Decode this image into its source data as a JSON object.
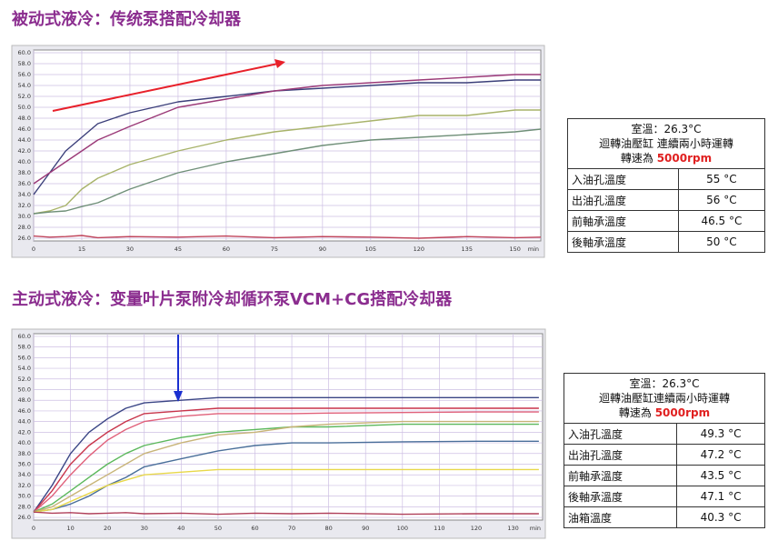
{
  "chart_data": [
    {
      "type": "line",
      "title": "被动式液冷：传统泵搭配冷却器",
      "xlabel": "min",
      "grid": true,
      "x": [
        0,
        5,
        10,
        15,
        20,
        30,
        45,
        60,
        75,
        90,
        105,
        120,
        135,
        150,
        158
      ],
      "xlim": [
        0,
        158
      ],
      "xticks": [
        0,
        15,
        30,
        45,
        60,
        75,
        90,
        105,
        120,
        135,
        150
      ],
      "ylim": [
        25.5,
        60.5
      ],
      "yticks": [
        {
          "value": 26,
          "label": "26.0"
        },
        {
          "value": 28,
          "label": "28.0"
        },
        {
          "value": 30,
          "label": "30.0"
        },
        {
          "value": 32,
          "label": "32.0"
        },
        {
          "value": 34,
          "label": "34.0"
        },
        {
          "value": 36,
          "label": "36.0"
        },
        {
          "value": 38,
          "label": "38.0"
        },
        {
          "value": 40,
          "label": "40.0"
        },
        {
          "value": 42,
          "label": "42.0"
        },
        {
          "value": 44,
          "label": "44.0"
        },
        {
          "value": 46,
          "label": "46.0"
        },
        {
          "value": 48,
          "label": "48.0"
        },
        {
          "value": 50,
          "label": "50.0"
        },
        {
          "value": 52,
          "label": "52.0"
        },
        {
          "value": 54,
          "label": "54.0"
        },
        {
          "value": 56,
          "label": "56.0"
        },
        {
          "value": 58,
          "label": "58.0"
        },
        {
          "value": 60,
          "label": "60.0"
        }
      ],
      "series": [
        {
          "color": "#3b3f7a",
          "values": [
            34,
            38,
            42,
            44.5,
            47,
            49,
            51,
            52,
            53,
            53.5,
            54,
            54.5,
            54.5,
            55,
            55
          ]
        },
        {
          "color": "#9b3a78",
          "values": [
            36,
            38,
            40,
            42,
            44,
            46.5,
            50,
            51.5,
            53,
            54,
            54.5,
            55,
            55.5,
            56,
            56
          ]
        },
        {
          "color": "#a8b36a",
          "values": [
            30.5,
            31,
            32,
            35,
            37,
            39.5,
            42,
            44,
            45.5,
            46.5,
            47.5,
            48.5,
            48.5,
            49.5,
            49.5
          ]
        },
        {
          "color": "#6f8f78",
          "values": [
            30.5,
            30.8,
            31,
            31.8,
            32.5,
            35,
            38,
            40,
            41.5,
            43,
            44,
            44.5,
            45,
            45.5,
            46
          ]
        },
        {
          "color": "#c0445a",
          "values": [
            26.4,
            26.2,
            26.3,
            26.5,
            26.1,
            26.3,
            26.2,
            26.4,
            26.1,
            26.3,
            26.2,
            26.0,
            26.3,
            26.1,
            26.2
          ]
        }
      ]
    },
    {
      "type": "line",
      "title": "主动式液冷：变量叶片泵附冷却循环泵VCM+CG搭配冷却器",
      "xlabel": "min",
      "grid": true,
      "x": [
        0,
        5,
        10,
        15,
        20,
        25,
        30,
        40,
        50,
        60,
        70,
        80,
        100,
        120,
        137
      ],
      "xlim": [
        0,
        138
      ],
      "xticks": [
        0,
        10,
        20,
        30,
        40,
        50,
        60,
        70,
        80,
        90,
        100,
        110,
        120,
        130
      ],
      "ylim": [
        25.5,
        60.5
      ],
      "yticks": [
        {
          "value": 26,
          "label": "26.0"
        },
        {
          "value": 28,
          "label": "28.0"
        },
        {
          "value": 30,
          "label": "30.0"
        },
        {
          "value": 32,
          "label": "32.0"
        },
        {
          "value": 34,
          "label": "34.0"
        },
        {
          "value": 36,
          "label": "36.0"
        },
        {
          "value": 38,
          "label": "38.0"
        },
        {
          "value": 40,
          "label": "40.0"
        },
        {
          "value": 42,
          "label": "42.0"
        },
        {
          "value": 44,
          "label": "44.0"
        },
        {
          "value": 46,
          "label": "46.0"
        },
        {
          "value": 48,
          "label": "48.0"
        },
        {
          "value": 50,
          "label": "50.0"
        },
        {
          "value": 52,
          "label": "52.0"
        },
        {
          "value": 54,
          "label": "54.0"
        },
        {
          "value": 56,
          "label": "56.0"
        },
        {
          "value": 58,
          "label": "58.0"
        },
        {
          "value": 60,
          "label": "60.0"
        }
      ],
      "series": [
        {
          "color": "#3a4585",
          "values": [
            27,
            32,
            38,
            42,
            44.5,
            46.5,
            47.5,
            48,
            48.5,
            48.5,
            48.5,
            48.5,
            48.5,
            48.5,
            48.5
          ]
        },
        {
          "color": "#c8344a",
          "values": [
            27,
            31,
            36,
            39.5,
            42,
            44,
            45.5,
            46,
            46.5,
            46.5,
            46.5,
            46.5,
            46.5,
            46.5,
            46.5
          ]
        },
        {
          "color": "#e0607a",
          "values": [
            27,
            30,
            34,
            37.5,
            40.5,
            42.5,
            44,
            45,
            45.5,
            45.5,
            45.5,
            45.6,
            45.7,
            45.8,
            45.8
          ]
        },
        {
          "color": "#5cb85c",
          "values": [
            27,
            28.5,
            31,
            33.5,
            36,
            38,
            39.5,
            41,
            42,
            42.5,
            43,
            43,
            43.5,
            43.5,
            43.5
          ]
        },
        {
          "color": "#c8b478",
          "values": [
            27,
            28,
            30,
            32,
            34,
            36,
            38,
            40,
            41.5,
            42,
            43,
            43.5,
            44,
            44,
            44
          ]
        },
        {
          "color": "#4a6f9a",
          "values": [
            27,
            27.5,
            28.5,
            30,
            32,
            33.5,
            35.5,
            37,
            38.5,
            39.5,
            40,
            40,
            40.2,
            40.3,
            40.3
          ]
        },
        {
          "color": "#e8d84a",
          "values": [
            27,
            27.5,
            29,
            30.5,
            32,
            33,
            34,
            34.5,
            35,
            35,
            35,
            35,
            35,
            35,
            35
          ]
        },
        {
          "color": "#b0405a",
          "values": [
            27,
            26.8,
            26.9,
            26.7,
            26.8,
            26.9,
            26.7,
            26.8,
            26.6,
            26.8,
            26.7,
            26.8,
            26.6,
            26.7,
            26.7
          ]
        }
      ]
    }
  ],
  "tables": [
    {
      "header": [
        "室溫：26.3°C",
        "迴轉油壓缸 連續兩小時運轉"
      ],
      "speed_label": "轉速為",
      "speed_value": "5000rpm",
      "rows": [
        [
          "入油孔溫度",
          "55 °C"
        ],
        [
          "出油孔溫度",
          "56 °C"
        ],
        [
          "前軸承溫度",
          "46.5 °C"
        ],
        [
          "後軸承溫度",
          "50 °C"
        ]
      ]
    },
    {
      "header": [
        "室溫：26.3°C",
        "迴轉油壓缸連續兩小時運轉"
      ],
      "speed_label": "轉速為",
      "speed_value": "5000rpm",
      "rows": [
        [
          "入油孔溫度",
          "49.3 °C"
        ],
        [
          "出油孔溫度",
          "47.2 °C"
        ],
        [
          "前軸承溫度",
          "43.5 °C"
        ],
        [
          "後軸承溫度",
          "47.1 °C"
        ],
        [
          "油箱溫度",
          "40.3 °C"
        ]
      ]
    }
  ]
}
